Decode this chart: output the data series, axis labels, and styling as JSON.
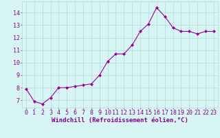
{
  "x": [
    0,
    1,
    2,
    3,
    4,
    5,
    6,
    7,
    8,
    9,
    10,
    11,
    12,
    13,
    14,
    15,
    16,
    17,
    18,
    19,
    20,
    21,
    22,
    23
  ],
  "y": [
    7.9,
    6.9,
    6.7,
    7.2,
    8.0,
    8.0,
    8.1,
    8.2,
    8.3,
    9.0,
    10.1,
    10.7,
    10.7,
    11.4,
    12.5,
    13.1,
    14.4,
    13.7,
    12.8,
    12.5,
    12.5,
    12.3,
    12.5,
    12.5
  ],
  "line_color": "#990099",
  "marker": "D",
  "marker_size": 2.0,
  "line_width": 0.8,
  "bg_color": "#d8f5f5",
  "grid_color": "#b8d8d8",
  "xlabel": "Windchill (Refroidissement éolien,°C)",
  "xlabel_color": "#880088",
  "xlabel_fontsize": 6.5,
  "tick_color": "#880088",
  "tick_fontsize": 6.0,
  "ytick_labels": [
    "7",
    "8",
    "9",
    "10",
    "11",
    "12",
    "13",
    "14"
  ],
  "ytick_values": [
    7,
    8,
    9,
    10,
    11,
    12,
    13,
    14
  ],
  "ylim": [
    6.4,
    14.9
  ],
  "xlim": [
    -0.5,
    23.5
  ],
  "xtick_values": [
    0,
    1,
    2,
    3,
    4,
    5,
    6,
    7,
    8,
    9,
    10,
    11,
    12,
    13,
    14,
    15,
    16,
    17,
    18,
    19,
    20,
    21,
    22,
    23
  ]
}
